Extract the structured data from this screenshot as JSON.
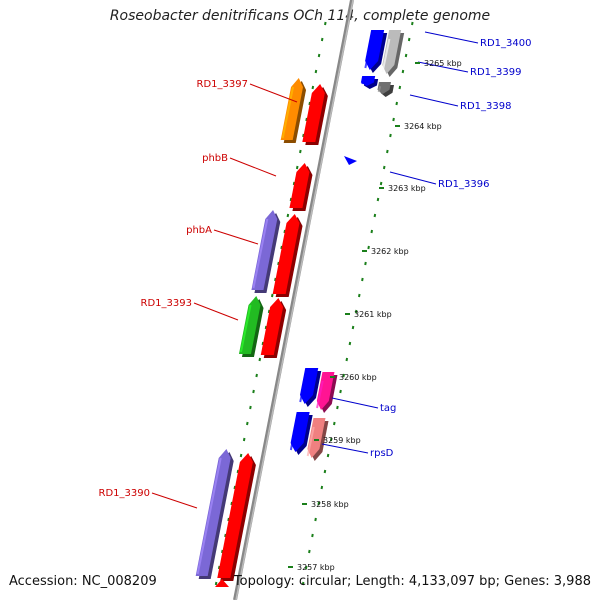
{
  "header": {
    "title": "Roseobacter denitrificans OCh 114, complete genome"
  },
  "footer": {
    "accession": "Accession: NC_008209",
    "topology": "Topology: circular; Length: 4,133,097 bp; Genes: 3,988"
  },
  "colors": {
    "forward_label": "#cc0000",
    "reverse_label": "#0000cc",
    "backbone": "#999999",
    "ticks": "#1a7f1a"
  },
  "genes_forward": [
    {
      "label": "RD1_3397",
      "color": "#ff0000"
    },
    {
      "label": "phbB",
      "color": "#ff0000"
    },
    {
      "label": "phbA",
      "color": "#ff0000"
    },
    {
      "label": "RD1_3393",
      "color": "#ff0000"
    },
    {
      "label": "RD1_3390",
      "color": "#ff0000"
    }
  ],
  "cog_forward": [
    {
      "label": "RD1_3397",
      "color": "#ff8c00"
    },
    {
      "label": "phbA",
      "color": "#7b68d6"
    },
    {
      "label": "RD1_3393",
      "color": "#22bb22"
    },
    {
      "label": "RD1_3390",
      "color": "#7b68d6"
    }
  ],
  "genes_reverse": [
    {
      "label": "RD1_3400",
      "color": "#0000ff"
    },
    {
      "label": "RD1_3398",
      "color": "#0000ff"
    },
    {
      "label": "RD1_3396",
      "color": "#0000ff"
    },
    {
      "label": "tag",
      "color": "#0000ff"
    },
    {
      "label": "rpsD",
      "color": "#0000ff"
    }
  ],
  "cog_reverse": [
    {
      "label": "RD1_3399",
      "color": "#bbbbbb"
    },
    {
      "label": "RD1_3398",
      "color": "#707070"
    },
    {
      "label": "tag",
      "color": "#ff1493"
    },
    {
      "label": "rpsD",
      "color": "#f08080"
    }
  ],
  "ticks": [
    {
      "label": "3265 kbp"
    },
    {
      "label": "3264 kbp"
    },
    {
      "label": "3263 kbp"
    },
    {
      "label": "3262 kbp"
    },
    {
      "label": "3261 kbp"
    },
    {
      "label": "3260 kbp"
    },
    {
      "label": "3259 kbp"
    },
    {
      "label": "3258 kbp"
    },
    {
      "label": "3257 kbp"
    }
  ]
}
